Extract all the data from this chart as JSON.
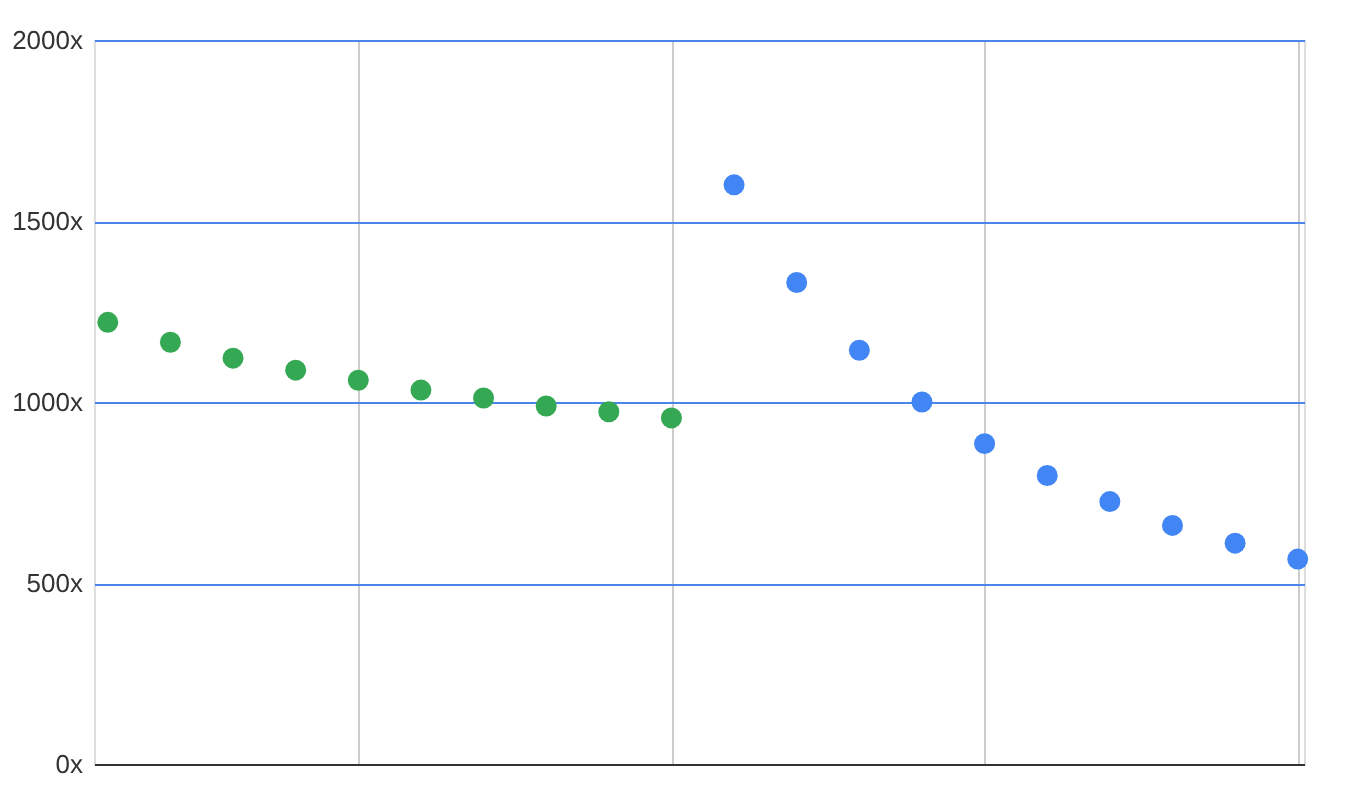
{
  "chart_data": {
    "type": "scatter",
    "marker": "circle",
    "grid": true,
    "legend": false,
    "tick_labels": "y",
    "categories": [
      null,
      null,
      null,
      null,
      null,
      null,
      null,
      null,
      null,
      null,
      null,
      null,
      null,
      null,
      null,
      null,
      null,
      null,
      null,
      null
    ],
    "ylim": [
      0,
      2000
    ],
    "yticks": [
      {
        "value": 0,
        "label": "0x"
      },
      {
        "value": 500,
        "label": "500x"
      },
      {
        "value": 1000,
        "label": "1000x"
      },
      {
        "value": 1500,
        "label": "1500x"
      },
      {
        "value": 2000,
        "label": "2000x"
      }
    ],
    "series": [
      {
        "color": "#34a853",
        "values": [
          1220,
          1165,
          1121,
          1088,
          1060,
          1033,
          1011,
          989,
          973,
          956,
          null,
          null,
          null,
          null,
          null,
          null,
          null,
          null,
          null,
          null
        ]
      },
      {
        "color": "#4285f4",
        "values": [
          null,
          null,
          null,
          null,
          null,
          null,
          null,
          null,
          null,
          null,
          1600,
          1330,
          1143,
          1000,
          885,
          797,
          725,
          659,
          610,
          566
        ]
      }
    ]
  }
}
